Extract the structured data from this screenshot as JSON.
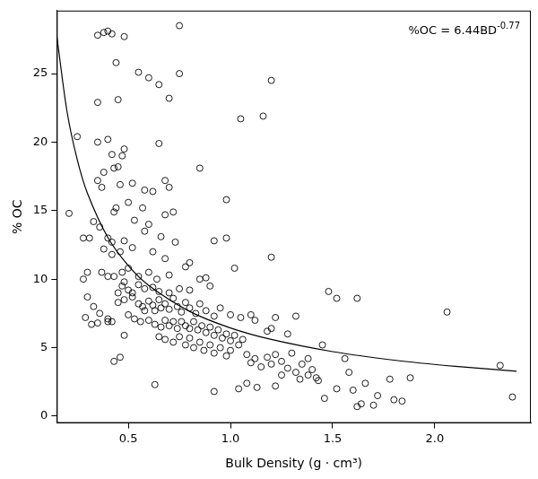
{
  "chart_data": {
    "type": "scatter",
    "x_label": "Bulk Density (g · cm³)",
    "y_label": "% OC",
    "annotation": {
      "text": "%OC = 6.44BD",
      "superscript": "-0.77"
    },
    "xlim": [
      0.15,
      2.47
    ],
    "ylim": [
      -0.5,
      29.6
    ],
    "xticks": [
      0.5,
      {
        "value": 1,
        "label": "1.0"
      },
      1.5,
      {
        "value": 2,
        "label": "2.0"
      }
    ],
    "yticks": [
      0,
      5,
      10,
      15,
      20,
      25
    ],
    "grid": false,
    "series": [
      {
        "type": "scatter",
        "marker": "open circle",
        "color": "#000000",
        "x": [
          0.38,
          0.4,
          0.42,
          0.35,
          0.48,
          0.75,
          0.44,
          0.55,
          0.75,
          0.6,
          0.65,
          0.45,
          0.7,
          0.35,
          1.05,
          1.16,
          1.2,
          0.25,
          0.35,
          0.4,
          0.48,
          0.42,
          0.47,
          0.65,
          0.45,
          0.43,
          0.85,
          0.38,
          0.35,
          0.52,
          0.68,
          0.7,
          0.37,
          0.46,
          0.58,
          0.62,
          0.98,
          0.21,
          0.43,
          0.44,
          0.5,
          0.57,
          0.72,
          0.53,
          0.6,
          0.68,
          0.33,
          0.36,
          0.31,
          0.28,
          0.4,
          0.42,
          0.48,
          0.58,
          0.66,
          0.73,
          0.92,
          0.98,
          0.38,
          0.46,
          0.42,
          0.52,
          0.62,
          0.68,
          0.8,
          0.78,
          1.2,
          1.02,
          0.37,
          0.3,
          0.28,
          0.4,
          0.43,
          0.47,
          0.5,
          0.55,
          0.6,
          0.64,
          0.7,
          0.85,
          0.88,
          0.47,
          0.48,
          0.5,
          0.52,
          0.55,
          0.58,
          0.62,
          0.65,
          0.7,
          0.75,
          0.8,
          0.9,
          0.45,
          0.3,
          0.33,
          0.36,
          0.4,
          0.35,
          0.29,
          0.32,
          0.4,
          0.42,
          0.45,
          0.48,
          0.52,
          0.55,
          0.57,
          0.58,
          0.6,
          0.62,
          0.63,
          0.65,
          0.66,
          0.68,
          0.7,
          0.72,
          0.74,
          0.76,
          0.78,
          0.8,
          0.83,
          0.85,
          0.88,
          0.92,
          0.95,
          1.0,
          1.05,
          1.1,
          1.12,
          1.22,
          1.32,
          1.28,
          0.5,
          0.53,
          0.56,
          0.6,
          0.63,
          0.66,
          0.68,
          0.7,
          0.72,
          0.74,
          0.76,
          0.78,
          0.8,
          0.82,
          0.84,
          0.86,
          0.88,
          0.9,
          0.92,
          0.94,
          0.96,
          0.98,
          1.0,
          1.02,
          1.04,
          1.06,
          0.65,
          0.68,
          0.72,
          0.75,
          0.78,
          0.8,
          0.82,
          0.85,
          0.87,
          0.9,
          0.92,
          0.95,
          0.98,
          1.0,
          1.08,
          1.1,
          1.12,
          1.15,
          1.18,
          1.2,
          1.22,
          1.25,
          1.28,
          1.3,
          1.32,
          1.35,
          1.38,
          1.4,
          1.42,
          1.43,
          1.45,
          1.25,
          1.22,
          1.13,
          1.08,
          1.04,
          0.92,
          0.63,
          0.46,
          0.43,
          0.48,
          1.18,
          1.2,
          1.48,
          1.52,
          1.62,
          2.06,
          1.56,
          1.58,
          1.6,
          1.62,
          1.64,
          1.66,
          1.7,
          1.72,
          1.78,
          1.8,
          1.84,
          1.88,
          1.46,
          2.32,
          2.38,
          1.38,
          1.34,
          1.52
        ],
        "values": [
          28.0,
          28.1,
          27.9,
          27.8,
          27.7,
          28.5,
          25.8,
          25.1,
          25.0,
          24.7,
          24.2,
          23.1,
          23.2,
          22.9,
          21.7,
          21.9,
          24.5,
          20.4,
          20.0,
          20.2,
          19.5,
          19.1,
          19.0,
          19.9,
          18.2,
          18.1,
          18.1,
          17.8,
          17.2,
          17.0,
          17.2,
          16.7,
          16.7,
          16.9,
          16.5,
          16.4,
          15.8,
          14.8,
          14.9,
          15.2,
          15.6,
          15.2,
          14.9,
          14.3,
          14.0,
          14.7,
          14.2,
          13.8,
          13.0,
          13.0,
          13.0,
          12.7,
          12.8,
          13.5,
          13.1,
          12.7,
          12.8,
          13.0,
          12.2,
          12.0,
          11.8,
          12.3,
          12.0,
          11.5,
          11.2,
          10.9,
          11.6,
          10.8,
          10.5,
          10.5,
          10.0,
          10.2,
          10.2,
          10.5,
          10.8,
          10.2,
          10.5,
          10.0,
          10.3,
          10.0,
          10.1,
          9.5,
          9.8,
          9.2,
          9.0,
          9.6,
          9.3,
          9.4,
          9.1,
          9.0,
          9.3,
          9.2,
          9.5,
          9.0,
          8.7,
          8.0,
          7.5,
          7.1,
          6.8,
          7.2,
          6.7,
          6.9,
          6.9,
          8.3,
          8.5,
          8.7,
          8.2,
          8.0,
          7.7,
          8.4,
          8.1,
          7.7,
          8.5,
          7.9,
          8.2,
          7.8,
          8.6,
          8.0,
          7.6,
          8.3,
          7.9,
          7.5,
          8.2,
          7.7,
          7.3,
          7.9,
          7.4,
          7.2,
          7.4,
          7.0,
          7.2,
          7.3,
          6.0,
          7.4,
          7.1,
          6.9,
          7.0,
          6.7,
          6.5,
          7.0,
          6.6,
          6.9,
          6.4,
          6.9,
          6.6,
          6.4,
          6.9,
          6.3,
          6.6,
          6.1,
          6.5,
          5.9,
          6.3,
          5.7,
          6.0,
          5.5,
          5.9,
          5.2,
          5.6,
          5.8,
          5.6,
          5.4,
          5.8,
          5.2,
          5.7,
          5.0,
          5.4,
          4.8,
          5.2,
          4.6,
          5.0,
          4.4,
          4.8,
          4.5,
          3.9,
          4.2,
          3.6,
          4.3,
          3.8,
          4.5,
          4.0,
          3.5,
          4.6,
          3.2,
          3.8,
          4.2,
          3.4,
          2.8,
          2.6,
          5.2,
          3.0,
          2.2,
          2.1,
          2.4,
          2.0,
          1.8,
          2.3,
          4.3,
          4.0,
          5.9,
          6.2,
          6.4,
          9.1,
          8.6,
          8.6,
          7.6,
          4.2,
          3.2,
          1.9,
          0.7,
          0.9,
          2.4,
          0.8,
          1.5,
          2.7,
          1.2,
          1.1,
          2.8,
          1.3,
          3.7,
          1.4,
          3.0,
          2.7,
          2.0
        ]
      },
      {
        "type": "line",
        "line_style": "solid",
        "color": "#000000",
        "x": [
          0.15,
          0.2,
          0.25,
          0.3,
          0.4,
          0.5,
          0.6,
          0.8,
          1.0,
          1.2,
          1.5,
          1.8,
          2.1,
          2.4
        ],
        "values": [
          27.75,
          22.24,
          18.73,
          16.27,
          13.04,
          10.98,
          9.54,
          7.65,
          6.44,
          5.6,
          4.71,
          4.09,
          3.64,
          3.28
        ]
      }
    ]
  }
}
